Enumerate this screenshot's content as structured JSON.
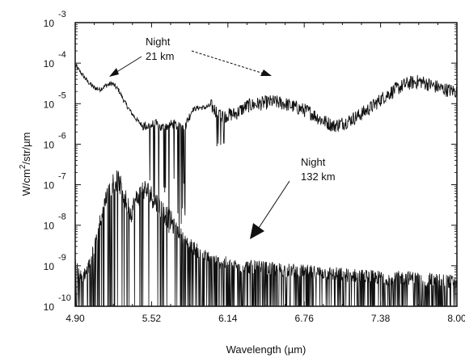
{
  "chart_data": {
    "type": "line",
    "title": "",
    "xlabel": "Wavelength (µm)",
    "ylabel_main": "W/cm",
    "ylabel_sup": "2",
    "ylabel_rest": "/str/µm",
    "xlim": [
      4.9,
      8.0
    ],
    "ylim": [
      -10,
      -3
    ],
    "x_ticks": [
      "4.90",
      "5.52",
      "6.14",
      "6.76",
      "7.38",
      "8.00"
    ],
    "x_tick_values": [
      4.9,
      5.52,
      6.14,
      6.76,
      7.38,
      8.0
    ],
    "y_ticks": [
      {
        "base": "10",
        "exp": "-3",
        "value": -3
      },
      {
        "base": "10",
        "exp": "-4",
        "value": -4
      },
      {
        "base": "10",
        "exp": "-5",
        "value": -5
      },
      {
        "base": "10",
        "exp": "-6",
        "value": -6
      },
      {
        "base": "10",
        "exp": "-7",
        "value": -7
      },
      {
        "base": "10",
        "exp": "-8",
        "value": -8
      },
      {
        "base": "10",
        "exp": "-9",
        "value": -9
      },
      {
        "base": "10",
        "exp": "-10",
        "value": -10
      }
    ],
    "y_scale": "log",
    "grid": false,
    "series": [
      {
        "label_line1": "Night",
        "label_line2": "21 km",
        "color": "#111111",
        "x": [
          4.9,
          4.95,
          5.0,
          5.05,
          5.1,
          5.15,
          5.2,
          5.25,
          5.3,
          5.35,
          5.4,
          5.45,
          5.5,
          5.55,
          5.6,
          5.65,
          5.7,
          5.75,
          5.8,
          5.85,
          5.9,
          5.95,
          6.0,
          6.05,
          6.1,
          6.2,
          6.3,
          6.4,
          6.5,
          6.6,
          6.7,
          6.8,
          6.9,
          7.0,
          7.1,
          7.2,
          7.3,
          7.4,
          7.5,
          7.6,
          7.7,
          7.8,
          7.9,
          8.0
        ],
        "y": [
          -4.05,
          -4.25,
          -4.45,
          -4.6,
          -4.65,
          -4.55,
          -4.5,
          -4.65,
          -4.95,
          -5.2,
          -5.4,
          -5.55,
          -5.55,
          -5.5,
          -5.6,
          -5.55,
          -5.5,
          -5.6,
          -5.5,
          -5.15,
          -5.1,
          -5.1,
          -5.05,
          -5.2,
          -5.3,
          -5.25,
          -5.05,
          -5.0,
          -4.95,
          -5.0,
          -5.1,
          -5.2,
          -5.4,
          -5.55,
          -5.45,
          -5.3,
          -5.1,
          -4.85,
          -4.65,
          -4.5,
          -4.45,
          -4.55,
          -4.65,
          -4.7
        ]
      },
      {
        "label_line1": "Night",
        "label_line2": "132 km",
        "color": "#111111",
        "x": [
          4.9,
          4.95,
          5.0,
          5.05,
          5.1,
          5.15,
          5.2,
          5.25,
          5.3,
          5.35,
          5.4,
          5.45,
          5.5,
          5.55,
          5.6,
          5.65,
          5.7,
          5.75,
          5.8,
          5.9,
          6.0,
          6.2,
          6.4,
          6.6,
          6.8,
          7.0,
          7.2,
          7.4,
          7.6,
          7.8,
          8.0
        ],
        "y": [
          -9.0,
          -9.3,
          -9.1,
          -8.6,
          -7.9,
          -7.3,
          -6.95,
          -6.9,
          -7.3,
          -7.7,
          -7.35,
          -7.1,
          -7.2,
          -7.4,
          -7.6,
          -7.8,
          -8.0,
          -8.2,
          -8.4,
          -8.65,
          -8.85,
          -9.0,
          -9.05,
          -9.1,
          -9.15,
          -9.2,
          -9.25,
          -9.3,
          -9.3,
          -9.35,
          -9.4
        ]
      }
    ]
  }
}
